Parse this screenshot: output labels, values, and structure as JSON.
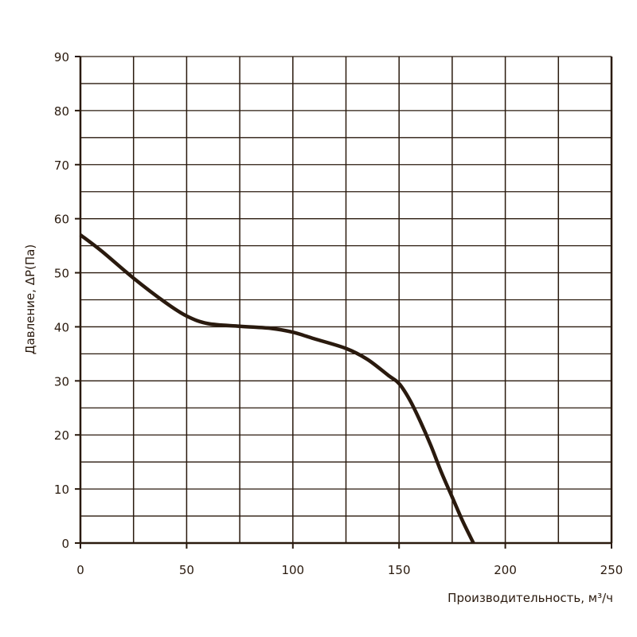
{
  "chart_data": {
    "type": "line",
    "title": "",
    "xlabel": "Производительность, м³/ч",
    "ylabel": "Давление, ΔP(Па)",
    "xlim": [
      0,
      250
    ],
    "ylim": [
      0,
      90
    ],
    "x_ticks": [
      "0",
      "50",
      "100",
      "150",
      "200",
      "250"
    ],
    "y_ticks": [
      "0",
      "10",
      "20",
      "30",
      "40",
      "50",
      "60",
      "70",
      "80",
      "90"
    ],
    "grid": true,
    "grid_x_step": 25,
    "grid_y_step": 5,
    "colors": {
      "line": "#2a1a0e",
      "grid": "#2a1a0e"
    },
    "series": [
      {
        "x": [
          0,
          10,
          25,
          40,
          50,
          60,
          75,
          90,
          100,
          110,
          125,
          135,
          145,
          150,
          155,
          160,
          165,
          170,
          175,
          180,
          185
        ],
        "y": [
          57,
          54,
          49,
          44.5,
          42,
          40.6,
          40.1,
          39.7,
          39,
          37.8,
          36,
          34,
          31,
          29.5,
          26.5,
          22.5,
          18,
          13,
          8.5,
          4,
          0
        ]
      }
    ]
  }
}
